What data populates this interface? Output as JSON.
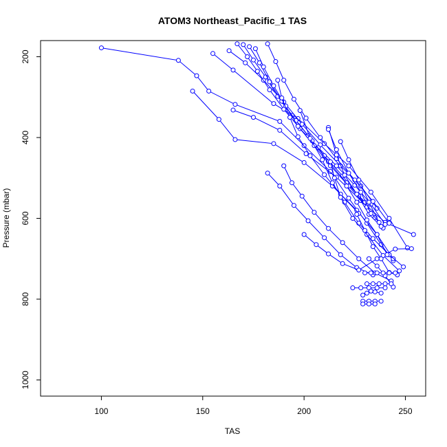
{
  "chart_data": {
    "type": "line",
    "title": "ATOM3 Northeast_Pacific_1 TAS",
    "xlabel": "TAS",
    "ylabel": "Pressure (mbar)",
    "xlim": [
      70,
      260
    ],
    "ylim": [
      1040,
      160
    ],
    "y_inverted": true,
    "x_ticks": [
      100,
      150,
      200,
      250
    ],
    "y_ticks": [
      200,
      400,
      600,
      800,
      1000
    ],
    "grid": false,
    "legend": "none",
    "colors": {
      "series": "#0000ff",
      "frame": "#000000"
    },
    "marker": "open-circle",
    "series": [
      {
        "x": [
          100,
          138,
          147,
          153,
          166,
          188,
          200,
          213,
          222,
          231,
          238,
          244
        ],
        "y": [
          178,
          209,
          247,
          285,
          318,
          360,
          420,
          484,
          550,
          612,
          665,
          705
        ]
      },
      {
        "x": [
          145,
          158,
          166,
          185,
          200,
          214,
          226,
          236,
          244
        ],
        "y": [
          285,
          355,
          405,
          415,
          462,
          520,
          580,
          640,
          700
        ]
      },
      {
        "x": [
          155,
          165,
          185,
          197,
          210,
          222,
          233,
          242,
          251
        ],
        "y": [
          192,
          233,
          316,
          353,
          415,
          470,
          535,
          600,
          673
        ]
      },
      {
        "x": [
          165,
          175,
          188,
          201,
          216,
          228,
          240,
          254
        ],
        "y": [
          332,
          350,
          382,
          440,
          498,
          556,
          610,
          640
        ]
      },
      {
        "x": [
          163,
          171,
          180,
          190,
          199,
          208,
          218,
          228,
          236
        ],
        "y": [
          185,
          215,
          258,
          312,
          367,
          418,
          470,
          520,
          575
        ]
      },
      {
        "x": [
          167,
          172,
          177,
          183,
          190,
          198,
          207,
          216,
          225,
          233,
          240
        ],
        "y": [
          168,
          200,
          236,
          282,
          330,
          378,
          425,
          470,
          518,
          565,
          615
        ]
      },
      {
        "x": [
          170,
          175,
          181,
          187,
          194,
          202,
          210,
          219,
          227,
          235
        ],
        "y": [
          170,
          208,
          250,
          298,
          345,
          395,
          445,
          495,
          545,
          598
        ]
      },
      {
        "x": [
          173,
          178,
          183,
          189,
          196,
          204,
          212,
          221,
          230
        ],
        "y": [
          175,
          215,
          262,
          310,
          358,
          408,
          460,
          512,
          560
        ]
      },
      {
        "x": [
          176,
          180,
          185,
          191,
          197,
          205,
          213,
          222,
          231,
          239
        ],
        "y": [
          180,
          225,
          272,
          322,
          372,
          420,
          470,
          520,
          572,
          624
        ]
      },
      {
        "x": [
          182,
          186,
          190,
          195,
          201,
          208,
          216,
          225,
          234,
          242
        ],
        "y": [
          168,
          212,
          258,
          305,
          352,
          400,
          452,
          505,
          558,
          612
        ]
      },
      {
        "x": [
          187,
          189,
          193,
          197,
          203,
          210,
          218,
          227
        ],
        "y": [
          258,
          302,
          350,
          398,
          445,
          492,
          540,
          588
        ]
      },
      {
        "x": [
          182,
          188,
          195,
          202,
          210,
          218,
          226,
          234
        ],
        "y": [
          488,
          520,
          568,
          606,
          648,
          690,
          722,
          740
        ]
      },
      {
        "x": [
          190,
          194,
          199,
          205,
          212,
          219,
          227,
          235,
          243
        ],
        "y": [
          470,
          512,
          545,
          585,
          625,
          660,
          700,
          735,
          755
        ]
      },
      {
        "x": [
          198,
          203,
          209,
          214,
          220,
          227,
          234,
          242,
          249
        ],
        "y": [
          333,
          402,
          455,
          512,
          560,
          612,
          650,
          690,
          720
        ]
      },
      {
        "x": [
          200,
          206,
          212,
          219,
          227,
          236,
          245,
          253
        ],
        "y": [
          640,
          665,
          688,
          712,
          728,
          700,
          676,
          675
        ]
      },
      {
        "x": [
          212,
          216,
          220,
          226,
          232,
          238
        ],
        "y": [
          375,
          443,
          493,
          540,
          590,
          620
        ]
      },
      {
        "x": [
          213,
          215,
          218,
          224,
          231,
          239,
          247
        ],
        "y": [
          460,
          500,
          548,
          600,
          640,
          692,
          730
        ]
      },
      {
        "x": [
          232,
          236,
          240,
          244
        ],
        "y": [
          700,
          718,
          742,
          770
        ]
      },
      {
        "x": [
          221,
          226,
          231,
          236,
          241
        ],
        "y": [
          520,
          560,
          604,
          640,
          690
        ]
      },
      {
        "x": [
          212,
          216,
          222,
          228,
          233
        ],
        "y": [
          380,
          430,
          488,
          535,
          588
        ]
      },
      {
        "x": [
          226,
          230,
          234,
          238,
          242,
          246
        ],
        "y": [
          590,
          630,
          670,
          700,
          734,
          740
        ]
      },
      {
        "x": [
          218,
          222,
          227,
          232,
          237
        ],
        "y": [
          410,
          455,
          505,
          560,
          610
        ]
      },
      {
        "x": [
          224,
          228,
          232,
          236,
          240
        ],
        "y": [
          772,
          772,
          772,
          772,
          772
        ]
      },
      {
        "x": [
          230,
          233,
          236,
          239,
          242,
          245
        ],
        "y": [
          735,
          735,
          735,
          735,
          735,
          735
        ]
      },
      {
        "x": [
          229,
          232,
          235,
          238
        ],
        "y": [
          805,
          805,
          805,
          805
        ]
      },
      {
        "x": [
          229,
          232,
          235
        ],
        "y": [
          812,
          812,
          812
        ]
      },
      {
        "x": [
          231,
          234,
          237,
          240,
          243
        ],
        "y": [
          762,
          762,
          762,
          762,
          762
        ]
      },
      {
        "x": [
          229,
          231,
          233,
          235,
          238
        ],
        "y": [
          790,
          785,
          780,
          782,
          785
        ]
      }
    ]
  }
}
